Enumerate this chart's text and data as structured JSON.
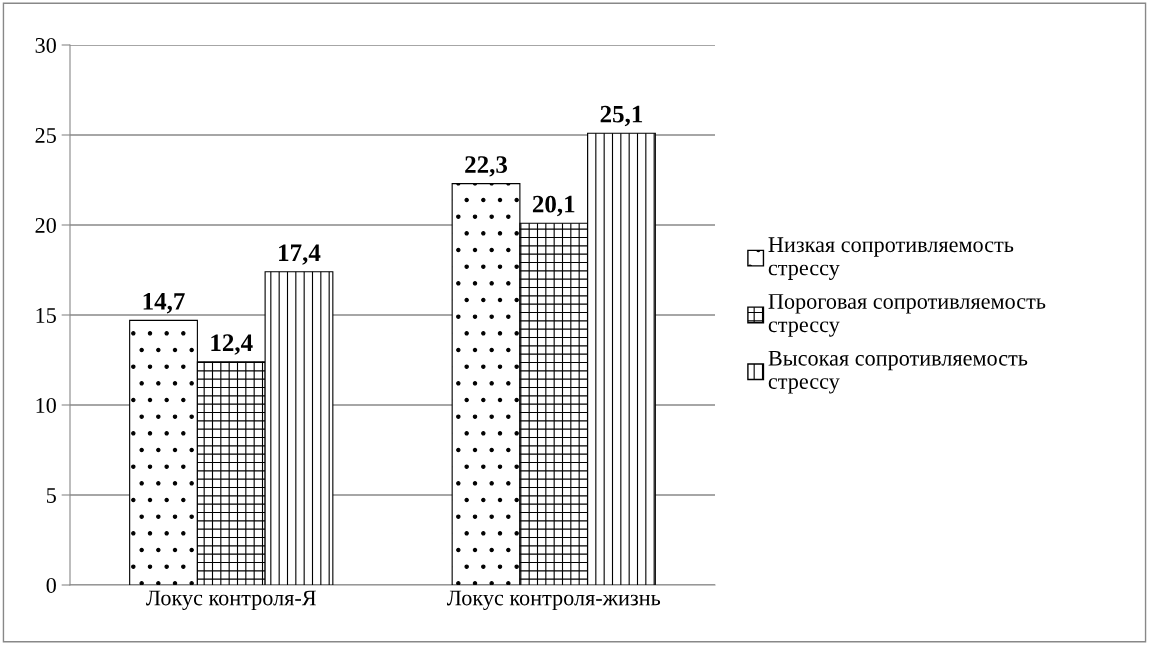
{
  "chart_data": {
    "type": "bar",
    "categories": [
      "Локус контроля-Я",
      "Локус контроля-жизнь"
    ],
    "series": [
      {
        "name": "Низкая сопротивляемость стрессу",
        "color": "#000000",
        "values": [
          14.7,
          22.3
        ],
        "value_labels": [
          "14,7",
          "22,3"
        ]
      },
      {
        "name": "Пороговая сопротивляемость стрессу",
        "color": "#000000",
        "values": [
          12.4,
          20.1
        ],
        "value_labels": [
          "12,4",
          "20,1"
        ]
      },
      {
        "name": "Высокая сопротивляемость стрессу",
        "color": "#000000",
        "values": [
          17.4,
          25.1
        ],
        "value_labels": [
          "17,4",
          "25,1"
        ]
      }
    ],
    "ylim": [
      0,
      30
    ],
    "yticks": [
      0,
      5,
      10,
      15,
      20,
      25,
      30
    ],
    "grid": "y",
    "legend": "right"
  }
}
